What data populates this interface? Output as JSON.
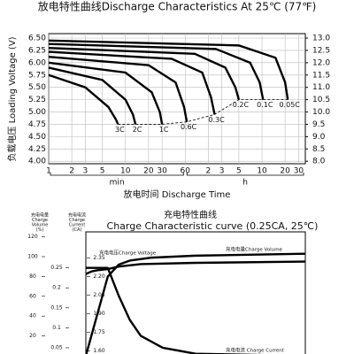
{
  "chart_data": [
    {
      "type": "line",
      "title": "放电特性曲线Discharge Characteristics At 25℃ (77℉)",
      "ylabel": "负载电压 Loading Voltage (V)",
      "xlabel": "放电时间 Discharge Time",
      "x_units": [
        "min",
        "h"
      ],
      "xscale": "log",
      "xlim": [
        1,
        2200
      ],
      "xticks": [
        1,
        2,
        3,
        5,
        10,
        20,
        30,
        60,
        {
          "value": 120,
          "label": "2"
        },
        {
          "value": 180,
          "label": "3"
        },
        {
          "value": 300,
          "label": "5"
        },
        {
          "value": 600,
          "label": "10"
        },
        {
          "value": 1200,
          "label": "20"
        },
        {
          "value": 1800,
          "label": "30"
        }
      ],
      "ylim": [
        3.95,
        6.59
      ],
      "yticks": [
        {
          "value": 6.5,
          "label": "6.50"
        },
        {
          "value": 6.25,
          "label": "6.25"
        },
        {
          "value": 6.0,
          "label": "6.00"
        },
        {
          "value": 5.75,
          "label": "5.75"
        },
        {
          "value": 5.5,
          "label": "5.50"
        },
        {
          "value": 5.25,
          "label": "5.25"
        },
        {
          "value": 5.0,
          "label": "5.00"
        },
        {
          "value": 4.75,
          "label": "4.75"
        },
        {
          "value": 4.5,
          "label": "4.50"
        },
        {
          "value": 4.25,
          "label": "4.25"
        },
        {
          "value": 4.0,
          "label": "4.00"
        }
      ],
      "y2lim": [
        7.9,
        13.18
      ],
      "y2ticks": [
        {
          "value": 13,
          "label": "13.0"
        },
        {
          "value": 12.5,
          "label": "12.5"
        },
        {
          "value": 12,
          "label": "12.0"
        },
        {
          "value": 11.5,
          "label": "11.5"
        },
        {
          "value": 11,
          "label": "11.0"
        },
        {
          "value": 10.5,
          "label": "10.5"
        },
        {
          "value": 10,
          "label": "10.0"
        },
        {
          "value": 9.5,
          "label": "9.5"
        },
        {
          "value": 9,
          "label": "9.0"
        },
        {
          "value": 8.5,
          "label": "8.5"
        },
        {
          "value": 8,
          "label": "8.0"
        }
      ],
      "grid": true,
      "series": [
        {
          "name": "3C",
          "color": "#000000",
          "x": [
            1,
            3,
            6,
            7.5,
            8
          ],
          "values": [
            5.75,
            5.5,
            5.1,
            4.85,
            4.75
          ]
        },
        {
          "name": "2C",
          "color": "#000000",
          "x": [
            1,
            5,
            10,
            12.5,
            13.5
          ],
          "values": [
            5.9,
            5.65,
            5.25,
            4.95,
            4.75
          ]
        },
        {
          "name": "1C",
          "color": "#000000",
          "x": [
            1,
            10,
            22,
            28,
            30
          ],
          "values": [
            6.0,
            5.8,
            5.4,
            5.0,
            4.75
          ]
        },
        {
          "name": "0.6C",
          "color": "#000000",
          "x": [
            1,
            20,
            45,
            58,
            63
          ],
          "values": [
            6.12,
            5.95,
            5.6,
            5.1,
            4.8
          ]
        },
        {
          "name": "0.3C",
          "color": "#000000",
          "x": [
            1,
            40,
            100,
            130,
            145
          ],
          "values": [
            6.22,
            6.08,
            5.8,
            5.3,
            4.95
          ]
        },
        {
          "name": "0.2C",
          "color": "#000000",
          "x": [
            1,
            80,
            200,
            270,
            300
          ],
          "values": [
            6.3,
            6.18,
            5.9,
            5.5,
            5.25
          ]
        },
        {
          "name": "0.1C",
          "color": "#000000",
          "x": [
            1,
            150,
            420,
            560,
            620
          ],
          "values": [
            6.38,
            6.28,
            6.0,
            5.6,
            5.25
          ]
        },
        {
          "name": "0.05C",
          "color": "#000000",
          "x": [
            1,
            300,
            900,
            1200,
            1300
          ],
          "values": [
            6.45,
            6.35,
            6.1,
            5.6,
            5.25
          ]
        }
      ]
    },
    {
      "type": "line",
      "title": "充电特性曲线",
      "subtitle": "Charge Characteristic curve (0.25CA, 25℃)",
      "ylabel_lines": [
        "充电电量",
        "Charge",
        "Volume",
        "(%)"
      ],
      "y2label_lines": [
        "充电电流",
        "Charge",
        "Current",
        "(CA)"
      ],
      "xlim": [
        0,
        20
      ],
      "ylim": [
        0,
        125
      ],
      "yticks": [
        120,
        100,
        80,
        60,
        40,
        20
      ],
      "y2lim": [
        0.03,
        0.34
      ],
      "y2ticks": [
        0.25,
        0.2,
        0.15,
        0.1,
        0.05
      ],
      "y3lim": [
        1.56,
        2.56
      ],
      "y3ticks": [
        2.35,
        {
          "value": 2.2,
          "label": "2.20"
        },
        2.05,
        {
          "value": 1.9,
          "label": "1.90"
        },
        1.75,
        {
          "value": 1.6,
          "label": "1.60"
        }
      ],
      "series": [
        {
          "name": "充电电压Charge Voltage",
          "color": "#000000",
          "axis": "y3",
          "x": [
            0,
            0.5,
            1,
            2,
            3,
            5,
            10,
            20
          ],
          "values": [
            2.22,
            2.24,
            2.25,
            2.26,
            2.28,
            2.3,
            2.31,
            2.32
          ]
        },
        {
          "name": "充电电量Charge Volume",
          "color": "#000000",
          "axis": "y",
          "x": [
            0,
            1,
            2,
            3,
            4,
            6,
            10,
            20
          ],
          "values": [
            0,
            40,
            80,
            92,
            96,
            99,
            101,
            103
          ]
        },
        {
          "name": "充电电流 Charge Current",
          "color": "#000000",
          "axis": "y2",
          "x": [
            0,
            2,
            3,
            4,
            5,
            7,
            10,
            20
          ],
          "values": [
            0.25,
            0.25,
            0.18,
            0.12,
            0.08,
            0.05,
            0.035,
            0.03
          ]
        }
      ]
    }
  ]
}
